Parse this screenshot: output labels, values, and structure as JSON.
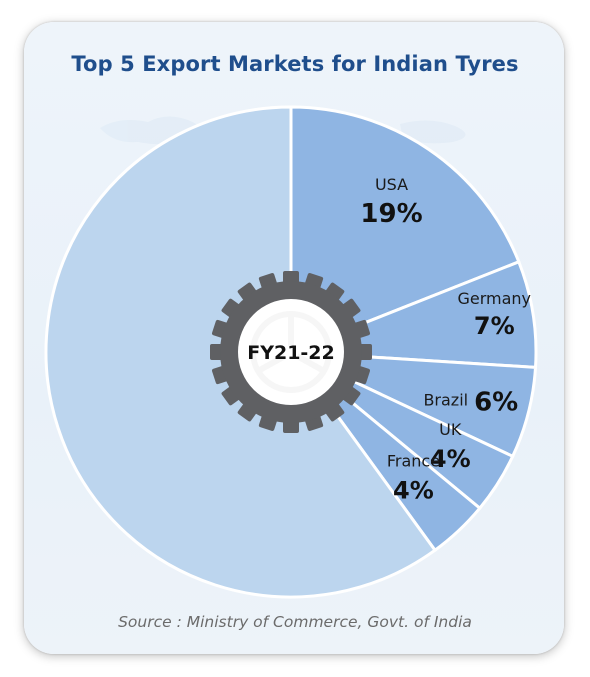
{
  "title": "Top 5 Export Markets for Indian Tyres",
  "center_label": "FY21-22",
  "source": "Source : Ministry of Commerce, Govt. of India",
  "colors": {
    "title": "#1f4e8c",
    "others_slice": "#bcd5ee",
    "market_slice": "#8fb5e3",
    "slice_border": "#ffffff",
    "tyre": "#5f6063",
    "hub": "#ffffff"
  },
  "icons": [
    "tyre-icon",
    "wheel-watermark-icon",
    "world-map-watermark"
  ],
  "chart_data": {
    "type": "pie",
    "title": "Top 5 Export Markets for Indian Tyres",
    "start_angle_deg": 0,
    "direction": "clockwise",
    "slices": [
      {
        "label": "USA",
        "value": 19,
        "display": "19%"
      },
      {
        "label": "Germany",
        "value": 7,
        "display": "7%"
      },
      {
        "label": "Brazil",
        "value": 6,
        "display": "6%"
      },
      {
        "label": "UK",
        "value": 4,
        "display": "4%"
      },
      {
        "label": "France",
        "value": 4,
        "display": "4%"
      },
      {
        "label": "",
        "value": 60,
        "display": ""
      }
    ]
  }
}
